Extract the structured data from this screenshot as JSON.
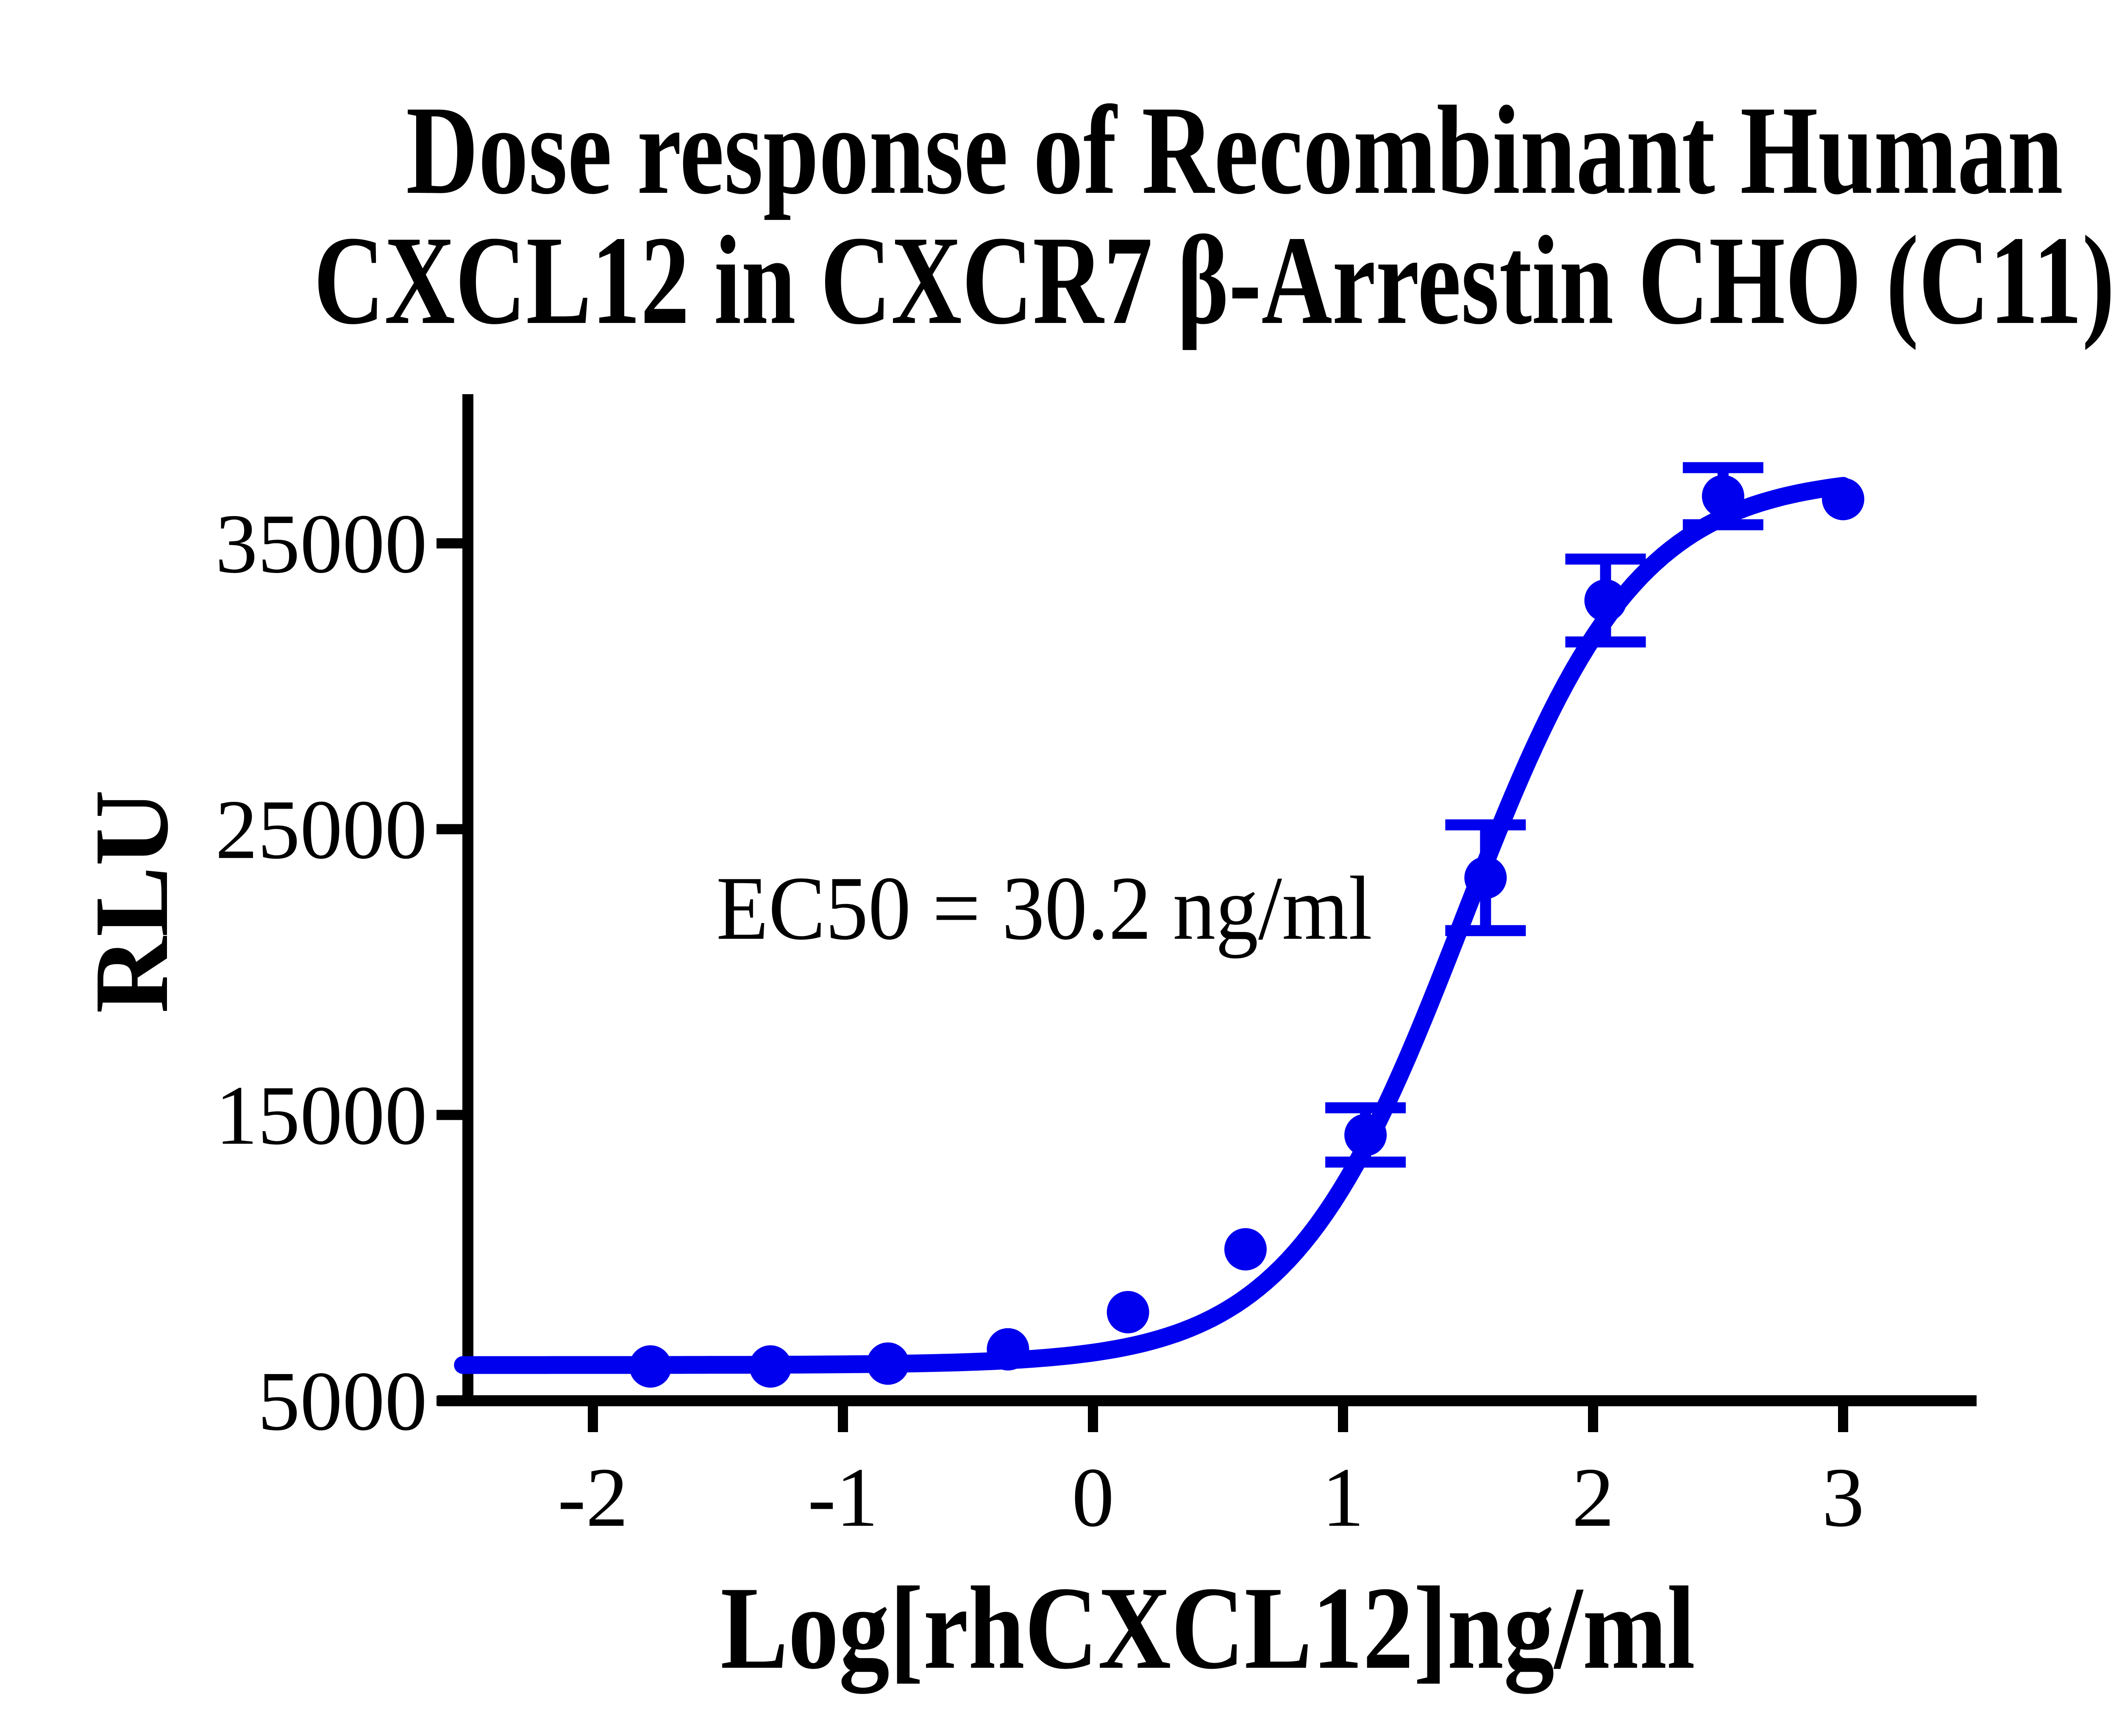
{
  "title": {
    "line1": "Dose response of Recombinant Human",
    "line2": "CXCL12 in CXCR7 β-Arrestin CHO (C11)"
  },
  "annotation": {
    "ec50": "EC50 = 30.2 ng/ml"
  },
  "axes": {
    "x": {
      "label": "Log[rhCXCL12]ng/ml",
      "ticks": [
        -2,
        -1,
        0,
        1,
        2,
        3
      ]
    },
    "y": {
      "label": "RLU",
      "ticks": [
        5000,
        15000,
        25000,
        35000
      ]
    }
  },
  "colors": {
    "curve": "#0000ee",
    "points": "#0000ee",
    "axis": "#000000",
    "background": "#ffffff"
  },
  "chart_data": {
    "type": "scatter",
    "title": "Dose response of Recombinant Human CXCL12 in CXCR7 β-Arrestin CHO (C11)",
    "xlabel": "Log[rhCXCL12]ng/ml",
    "ylabel": "RLU",
    "xlim": [
      -2.62,
      3.53
    ],
    "ylim": [
      5000,
      40200
    ],
    "x_ticks": [
      -2,
      -1,
      0,
      1,
      2,
      3
    ],
    "y_ticks": [
      5000,
      15000,
      25000,
      35000
    ],
    "grid": false,
    "legend": "none",
    "ec50_ng_ml": 30.2,
    "series": [
      {
        "name": "rhCXCL12",
        "x": [
          -1.77,
          -1.29,
          -0.82,
          -0.34,
          0.14,
          0.61,
          1.09,
          1.57,
          2.05,
          2.52,
          3.0
        ],
        "values": [
          6200,
          6200,
          6300,
          6800,
          8100,
          10300,
          14300,
          23300,
          33000,
          36650,
          36550
        ],
        "errors": [
          0,
          0,
          0,
          0,
          0,
          0,
          950,
          1850,
          1450,
          1000,
          0
        ]
      }
    ],
    "fit": {
      "model": "4PL",
      "bottom": 6250,
      "top": 37400,
      "log_ec50": 1.48,
      "hill": 1.25,
      "x_start": -2.52,
      "x_end": 3.0
    }
  }
}
